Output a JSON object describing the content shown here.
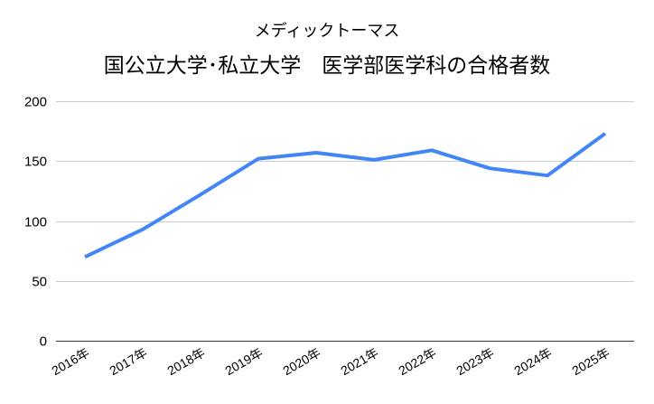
{
  "chart_data": {
    "type": "line",
    "title": "メディックトーマス",
    "subtitle": "国公立大学･私立大学　医学部医学科の合格者数",
    "xlabel": "",
    "ylabel": "",
    "categories": [
      "2016年",
      "2017年",
      "2018年",
      "2019年",
      "2020年",
      "2021年",
      "2022年",
      "2023年",
      "2024年",
      "2025年"
    ],
    "series": [
      {
        "name": "合格者数",
        "color": "#4285F4",
        "values": [
          70,
          93,
          122,
          152,
          157,
          151,
          159,
          144,
          138,
          173
        ]
      }
    ],
    "ylim": [
      0,
      200
    ],
    "yticks": [
      0,
      50,
      100,
      150,
      200
    ],
    "grid": true,
    "legend": "none"
  },
  "colors": {
    "line": "#4285F4",
    "grid": "#cccccc",
    "baseline": "#333333",
    "text": "#000000"
  }
}
